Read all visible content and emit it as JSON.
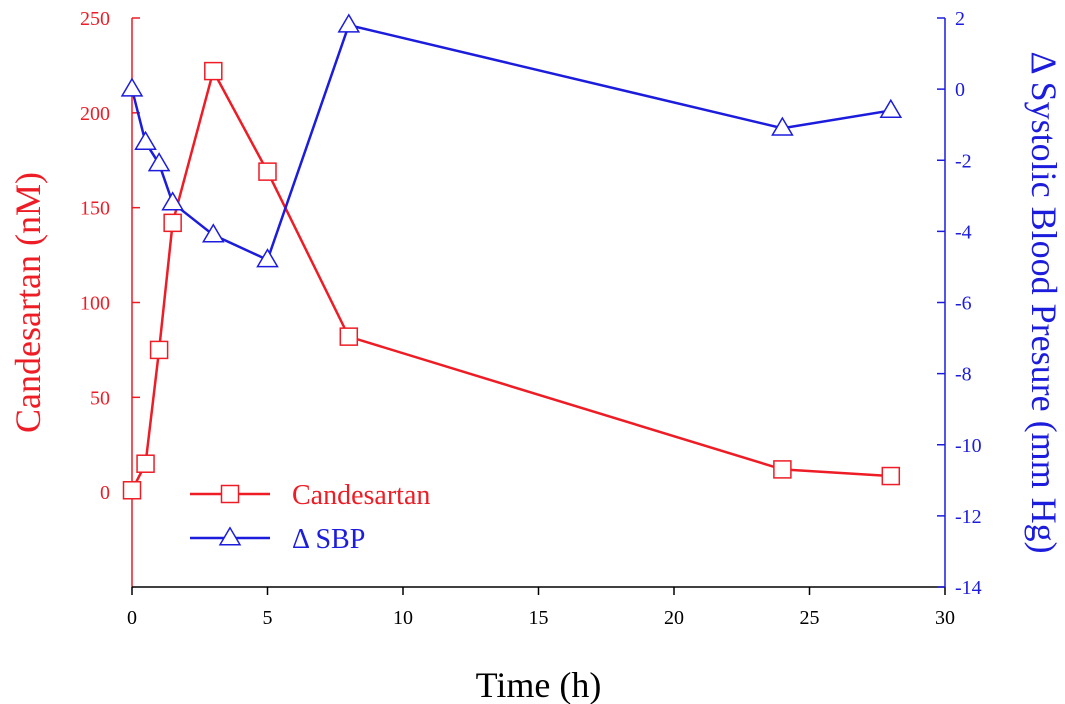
{
  "colors": {
    "left": "#ee1c25",
    "right": "#1c1cdd",
    "bottom": "#000000"
  },
  "chart_data": {
    "type": "line",
    "title": "",
    "xlabel": "Time (h)",
    "ylabel": "Candesartan (nM)",
    "y2label": "Δ Systolic Blood Presure (mm Hg)",
    "xlim": [
      0,
      30
    ],
    "ylim": [
      -50,
      250
    ],
    "y2lim": [
      -14,
      2
    ],
    "xticks": [
      0,
      5,
      10,
      15,
      20,
      25,
      30
    ],
    "yticks": [
      0,
      50,
      100,
      150,
      200,
      250
    ],
    "y2ticks": [
      -14,
      -12,
      -10,
      -8,
      -6,
      -4,
      -2,
      0,
      2
    ],
    "grid": false,
    "legend_position": "lower-left",
    "series": [
      {
        "name": "Candesartan",
        "axis": "left",
        "marker": "square",
        "color": "#ee1c25",
        "x": [
          0,
          0.5,
          1,
          1.5,
          3,
          5,
          8,
          24,
          28
        ],
        "y": [
          1,
          15,
          75,
          142,
          222,
          169,
          82,
          12,
          8.5
        ]
      },
      {
        "name": "Δ SBP",
        "axis": "right",
        "marker": "triangle",
        "color": "#1c1cdd",
        "x": [
          0,
          0.5,
          1,
          1.5,
          3,
          5,
          8,
          24,
          28
        ],
        "y": [
          0,
          -1.5,
          -2.1,
          -3.2,
          -4.1,
          -4.8,
          1.8,
          -1.1,
          -0.6
        ]
      }
    ]
  }
}
